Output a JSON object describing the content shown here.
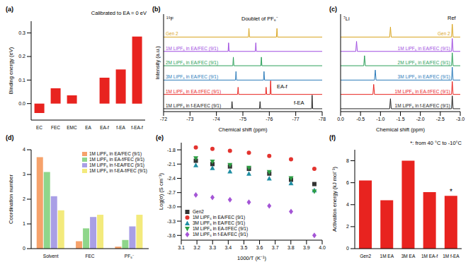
{
  "chart_data": [
    {
      "type": "bar",
      "title": "(a)",
      "subtitle": "Calibrated to EA = 0 eV",
      "y_label": "Binding energy (eV)",
      "categories": [
        "EC",
        "FEC",
        "EMC",
        "EA",
        "EA-f",
        "f-EA",
        "f-EA-f"
      ],
      "values": [
        -0.04,
        0.065,
        0.035,
        0,
        0.11,
        0.145,
        0.285
      ],
      "color": "#e8231f",
      "ylim": [
        -0.07,
        0.35
      ],
      "yticks": [
        {
          "value": 0,
          "label": "0.0"
        },
        0.1,
        0.2,
        0.3
      ]
    },
    {
      "type": "line",
      "title": "(b)",
      "x_label": "Chemical shift (ppm)",
      "y_label": "Intensity (a.u.)",
      "xlim": [
        -72,
        -78
      ],
      "xticks": [
        -72,
        -73,
        -74,
        -75,
        -76,
        -77,
        -78
      ],
      "ylim": [
        -0.2,
        6.6
      ],
      "tick_labels": "x",
      "annotations": [
        {
          "text": "¹⁹F"
        },
        {
          "text": "Doublet of PF₆⁻"
        },
        {
          "text": "EA-f"
        },
        {
          "text": "f-EA"
        }
      ],
      "series": [
        {
          "name": "Gen 2",
          "color": "#d9a520",
          "x": [
            -72,
            -75.21,
            -75.23,
            -75.25,
            -76.27,
            -76.29,
            -76.31,
            -78
          ],
          "values": [
            5,
            5,
            5.6,
            5,
            5,
            5.6,
            5,
            5
          ]
        },
        {
          "name": "1M LiPF₆ in EA/FEC (9/1)",
          "color": "#a04de0",
          "x": [
            -72,
            -74.44,
            -74.46,
            -74.48,
            -75.47,
            -75.49,
            -75.51,
            -78
          ],
          "values": [
            4,
            4,
            4.6,
            4,
            4,
            4.6,
            4,
            4
          ]
        },
        {
          "name": "2M LiPF₆ in EA/FEC (9/1)",
          "color": "#2ca05a",
          "x": [
            -72,
            -74.62,
            -74.64,
            -74.66,
            -75.68,
            -75.7,
            -75.72,
            -78
          ],
          "values": [
            3,
            3,
            3.6,
            3,
            3,
            3.6,
            3,
            3
          ]
        },
        {
          "name": "3M LiPF₆ in EA/FEC (9/1)",
          "color": "#2b7bba",
          "x": [
            -72,
            -74.72,
            -74.74,
            -74.76,
            -75.78,
            -75.8,
            -75.82,
            -78
          ],
          "values": [
            2,
            2,
            2.6,
            2,
            2,
            2.6,
            2,
            2
          ]
        },
        {
          "name": "1M LiPF₆ in EA-f/FEC (9/1)",
          "color": "#e8231f",
          "x": [
            -72,
            -74.8,
            -74.82,
            -74.84,
            -75.86,
            -75.88,
            -75.9,
            -76.03,
            -76.05,
            -76.07,
            -78
          ],
          "values": [
            1,
            1,
            1.5,
            1,
            1,
            1.5,
            1,
            1,
            1.95,
            1,
            1
          ]
        },
        {
          "name": "1M LiPF₆ in f-EA/FEC (9/1)",
          "color": "#222222",
          "x": [
            -72,
            -74.57,
            -74.59,
            -74.61,
            -75.63,
            -75.65,
            -75.67,
            -77.6,
            -77.62,
            -77.64,
            -78
          ],
          "values": [
            0,
            0,
            0.5,
            0,
            0,
            0.5,
            0,
            0,
            0.95,
            0,
            0
          ]
        }
      ]
    },
    {
      "type": "line",
      "title": "(c)",
      "x_label": "Chemical shift (ppm)",
      "xlim": [
        0,
        -3
      ],
      "xticks": [
        {
          "value": 0,
          "label": "0.0"
        },
        -0.5,
        {
          "value": -1,
          "label": "-1.0"
        },
        -1.5,
        {
          "value": -2,
          "label": "-2.0"
        },
        -2.5,
        {
          "value": -3,
          "label": "-3.0"
        }
      ],
      "ylim": [
        -0.2,
        6.6
      ],
      "tick_labels": "x",
      "annotations": [
        {
          "text": "⁷Li"
        },
        {
          "text": "Ref"
        }
      ],
      "series": [
        {
          "name": "Gen 2",
          "color": "#d9a520",
          "x": [
            0,
            -1.23,
            -1.25,
            -1.27,
            -2.78,
            -2.8,
            -2.82,
            -3
          ],
          "values": [
            5,
            5,
            5.7,
            5,
            5,
            5.9,
            5,
            5
          ]
        },
        {
          "name": "1M LiPF₆ in EA/FEC (9/1)",
          "color": "#a04de0",
          "x": [
            0,
            -0.38,
            -0.4,
            -0.42,
            -2.78,
            -2.8,
            -2.82,
            -3
          ],
          "values": [
            4,
            4,
            4.7,
            4,
            4,
            4.9,
            4,
            4
          ]
        },
        {
          "name": "2M LiPF₆ in EA/FEC (9/1)",
          "color": "#2ca05a",
          "x": [
            0,
            -0.58,
            -0.6,
            -0.62,
            -2.78,
            -2.8,
            -2.82,
            -3
          ],
          "values": [
            3,
            3,
            3.7,
            3,
            3,
            3.9,
            3,
            3
          ]
        },
        {
          "name": "3M LiPF₆ in EA/FEC (9/1)",
          "color": "#2b7bba",
          "x": [
            0,
            -0.85,
            -0.87,
            -0.89,
            -2.78,
            -2.8,
            -2.82,
            -3
          ],
          "values": [
            2,
            2,
            2.7,
            2,
            2,
            2.9,
            2,
            2
          ]
        },
        {
          "name": "1M LiPF₆ in EA-f/FEC (9/1)",
          "color": "#e8231f",
          "x": [
            0,
            -0.81,
            -0.83,
            -0.85,
            -2.78,
            -2.8,
            -2.82,
            -3
          ],
          "values": [
            1,
            1,
            1.7,
            1,
            1,
            1.9,
            1,
            1
          ]
        },
        {
          "name": "1M LiPF₆ in f-EA/FEC (9/1)",
          "color": "#222222",
          "x": [
            0,
            -1.23,
            -1.25,
            -1.27,
            -2.78,
            -2.8,
            -2.82,
            -3
          ],
          "values": [
            0,
            0,
            0.7,
            0,
            0,
            0.9,
            0,
            0
          ]
        }
      ]
    },
    {
      "type": "bar",
      "title": "(d)",
      "y_label": "Coordination number",
      "categories": [
        "Solvent",
        "FEC",
        "PF₆⁻"
      ],
      "ylim": [
        0,
        4
      ],
      "yticks": [
        0,
        1,
        2,
        3,
        4
      ],
      "legend": "upper right",
      "series": [
        {
          "name": "1M LiPF₆ in EA/FEC (9/1)",
          "color": "#f6a26b",
          "values": [
            3.7,
            0.3,
            0.08
          ]
        },
        {
          "name": "1M LiPF₆ in EA-f/FEC (9/1)",
          "color": "#8fd68b",
          "values": [
            3.1,
            0.82,
            0.35
          ]
        },
        {
          "name": "1M LiPF₆ in f-EA/FEC (9/1)",
          "color": "#a99fe6",
          "values": [
            2.12,
            1.28,
            0.9
          ]
        },
        {
          "name": "1M LiPF₆ in f-EA-f/FEC (9/1)",
          "color": "#f3ea7c",
          "values": [
            1.55,
            1.37,
            1.37
          ]
        }
      ]
    },
    {
      "type": "scatter",
      "title": "(e)",
      "x_label": "1000/T (K⁻¹)",
      "y_label": "Log(σ) (S cm⁻¹)",
      "xlim": [
        3.1,
        4.0
      ],
      "xticks": [
        3.1,
        3.2,
        3.3,
        3.4,
        3.5,
        3.6,
        3.7,
        3.8,
        3.9,
        {
          "value": 4,
          "label": "4.0"
        }
      ],
      "ylim": [
        -3.7,
        -1.65
      ],
      "yticks": [
        -1.8,
        -2.1,
        -2.4,
        -2.7,
        {
          "value": -3,
          "label": "-3.0"
        },
        -3.3,
        -3.6
      ],
      "legend": "lower left",
      "x": [
        3.193,
        3.299,
        3.411,
        3.532,
        3.662,
        3.801,
        3.95
      ],
      "series": [
        {
          "name": "Gen2",
          "color": "#333333",
          "marker": "square",
          "values": [
            -2.03,
            -2.1,
            -2.15,
            -2.2,
            -2.3,
            -2.43,
            -2.52
          ]
        },
        {
          "name": "1M LiPF₆ in EA/FEC (9/1)",
          "color": "#e3342f",
          "marker": "circle",
          "values": [
            -1.75,
            -1.78,
            -1.82,
            -1.86,
            -1.93,
            -2.0,
            -2.2
          ]
        },
        {
          "name": "3M LiPF₆ in EA/FEC (9/1)",
          "color": "#1f8ea3",
          "marker": "triangle",
          "values": [
            -2.12,
            -2.18,
            -2.25,
            -2.3,
            -2.4,
            -2.5,
            -2.65
          ]
        },
        {
          "name": "1M LiPF₆ in EA-f/FEC (9/1)",
          "color": "#2e9e44",
          "marker": "triangle-down",
          "values": [
            -1.98,
            -2.05,
            -2.12,
            -2.18,
            -2.27,
            -2.4,
            -2.68
          ]
        },
        {
          "name": "1M LiPF₆ in f-EA/FEC (9/1)",
          "color": "#a455d6",
          "marker": "diamond",
          "values": [
            -2.75,
            -2.8,
            -2.85,
            -2.9,
            -2.98,
            -3.1,
            -3.6
          ]
        }
      ]
    },
    {
      "type": "bar",
      "title": "(f)",
      "y_label": "Activation energy (kJ mol⁻¹)",
      "categories": [
        "Gen2",
        "1M EA",
        "3M EA",
        "1M EA-f",
        "1M f-EA"
      ],
      "values": [
        6.2,
        4.4,
        8.0,
        5.15,
        4.8
      ],
      "color": "#e8231f",
      "ylim": [
        0,
        9
      ],
      "yticks": [
        0,
        2,
        4,
        6,
        8
      ],
      "annotations": [
        {
          "text": "*: from 40 °C to -10°C"
        },
        {
          "text": "*",
          "category": "1M f-EA"
        }
      ]
    }
  ]
}
